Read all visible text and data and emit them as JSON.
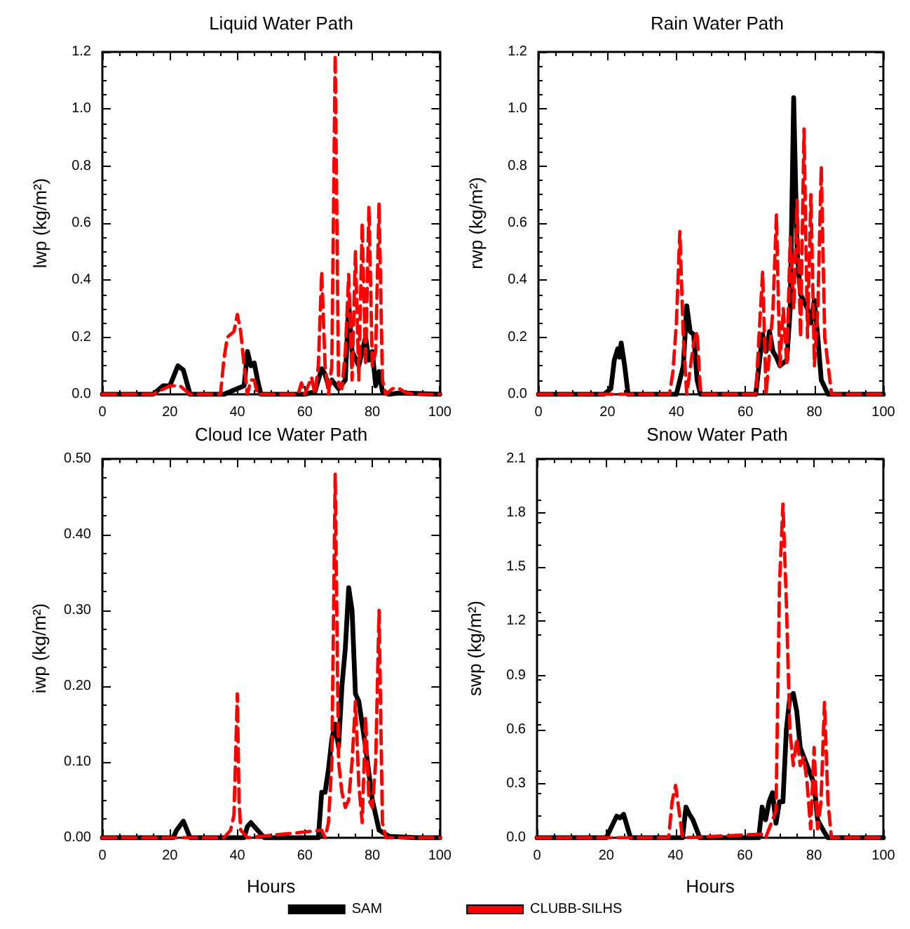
{
  "chart_data": [
    {
      "type": "line",
      "title": "Liquid Water Path",
      "ylabel": "lwp (kg/m²)",
      "xlim": [
        0,
        100
      ],
      "xticks": [
        0,
        20,
        40,
        60,
        80,
        100
      ],
      "ylim": [
        0,
        1.2
      ],
      "yticks": [
        {
          "value": 0,
          "label": "0.0"
        },
        {
          "value": 0.2,
          "label": "0.2"
        },
        {
          "value": 0.4,
          "label": "0.4"
        },
        {
          "value": 0.6,
          "label": "0.6"
        },
        {
          "value": 0.8,
          "label": "0.8"
        },
        {
          "value": 1.0,
          "label": "1.0"
        },
        {
          "value": 1.2,
          "label": "1.2"
        }
      ],
      "grid": false,
      "legend": false,
      "tick_labels": "xy",
      "series": [
        {
          "color": "#000000",
          "line_style": "solid",
          "x": [
            0,
            15,
            18,
            20,
            22.4,
            24,
            26,
            36,
            40,
            42,
            43,
            44,
            45,
            46,
            47,
            60,
            63,
            65,
            66,
            67,
            68,
            70,
            72,
            73,
            74,
            76,
            78,
            79,
            80,
            81,
            82,
            83,
            85,
            88,
            100
          ],
          "values": [
            0,
            0,
            0.03,
            0.03,
            0.1,
            0.085,
            0,
            0,
            0.02,
            0.03,
            0.15,
            0.1,
            0.11,
            0.05,
            0,
            0,
            0.01,
            0.09,
            0.07,
            0.03,
            0.05,
            0.02,
            0.05,
            0.32,
            0.15,
            0.1,
            0.2,
            0.12,
            0.15,
            0.03,
            0.08,
            0.01,
            0,
            0.005,
            0
          ]
        },
        {
          "color": "#ff0000",
          "line_style": "dashed",
          "x": [
            0,
            15,
            20,
            23,
            26,
            35,
            36,
            37,
            38,
            39,
            40,
            41,
            42,
            43,
            44,
            45,
            46,
            58,
            59,
            60,
            62,
            63,
            64,
            65,
            66,
            67,
            68,
            69,
            70,
            71,
            72,
            73,
            74,
            75,
            76,
            77,
            78,
            79,
            80,
            81,
            82,
            83,
            84,
            86,
            88,
            90,
            93,
            100
          ],
          "values": [
            0,
            0,
            0.03,
            0.03,
            0,
            0,
            0.12,
            0.2,
            0.21,
            0.22,
            0.28,
            0.22,
            0.1,
            0,
            0.05,
            0.05,
            0,
            0,
            0.04,
            0,
            0.06,
            0,
            0.1,
            0.43,
            0.1,
            0,
            0.1,
            1.19,
            0.03,
            0.02,
            0.15,
            0.42,
            0.05,
            0.5,
            0.05,
            0.6,
            0.1,
            0.66,
            0.1,
            0.15,
            0.67,
            0.05,
            0,
            0.02,
            0.02,
            0.005,
            0,
            0
          ]
        }
      ]
    },
    {
      "type": "line",
      "title": "Rain Water Path",
      "ylabel": "rwp (kg/m²)",
      "xlim": [
        0,
        100
      ],
      "xticks": [
        0,
        20,
        40,
        60,
        80,
        100
      ],
      "ylim": [
        0,
        1.2
      ],
      "yticks": [
        {
          "value": 0,
          "label": "0.0"
        },
        {
          "value": 0.2,
          "label": "0.2"
        },
        {
          "value": 0.4,
          "label": "0.4"
        },
        {
          "value": 0.6,
          "label": "0.6"
        },
        {
          "value": 0.8,
          "label": "0.8"
        },
        {
          "value": 1.0,
          "label": "1.0"
        },
        {
          "value": 1.2,
          "label": "1.2"
        }
      ],
      "grid": false,
      "legend": false,
      "series": [
        {
          "color": "#000000",
          "line_style": "solid",
          "x": [
            0,
            19,
            21,
            22,
            23,
            23.5,
            24,
            25,
            26,
            40,
            42,
            43,
            44,
            45,
            46,
            47,
            63,
            65,
            66,
            67,
            68,
            69,
            70,
            72,
            73,
            74,
            75,
            76,
            78,
            79,
            80,
            81,
            82,
            84,
            100
          ],
          "values": [
            0,
            0,
            0.02,
            0.12,
            0.16,
            0.13,
            0.18,
            0.1,
            0,
            0,
            0.1,
            0.31,
            0.22,
            0.21,
            0.05,
            0,
            0,
            0.21,
            0.15,
            0.22,
            0.15,
            0.13,
            0.1,
            0.12,
            0.3,
            1.04,
            0.5,
            0.35,
            0.3,
            0.25,
            0.33,
            0.2,
            0.05,
            0,
            0
          ]
        },
        {
          "color": "#ff0000",
          "line_style": "dashed",
          "x": [
            0,
            38,
            39,
            40,
            41,
            42,
            43,
            45,
            46,
            47,
            63,
            65,
            66,
            68,
            69,
            70,
            71,
            72,
            73,
            74,
            75,
            76,
            77,
            78,
            79,
            80,
            81,
            82,
            83,
            84,
            85,
            100
          ],
          "values": [
            0,
            0,
            0.08,
            0.25,
            0.57,
            0.2,
            0,
            0.18,
            0.22,
            0,
            0,
            0.43,
            0,
            0.3,
            0.63,
            0.1,
            0.3,
            0.1,
            0.55,
            0.3,
            0.68,
            0.2,
            0.93,
            0.2,
            0.7,
            0.1,
            0.3,
            0.8,
            0.2,
            0.1,
            0,
            0
          ]
        }
      ]
    },
    {
      "type": "line",
      "title": "Cloud Ice Water Path",
      "xlabel": "Hours",
      "ylabel": "iwp (kg/m²)",
      "xlim": [
        0,
        100
      ],
      "xticks": [
        0,
        20,
        40,
        60,
        80,
        100
      ],
      "ylim": [
        0,
        0.5
      ],
      "yticks": [
        {
          "value": 0,
          "label": "0.00"
        },
        {
          "value": 0.1,
          "label": "0.10"
        },
        {
          "value": 0.2,
          "label": "0.20"
        },
        {
          "value": 0.3,
          "label": "0.30"
        },
        {
          "value": 0.4,
          "label": "0.40"
        },
        {
          "value": 0.5,
          "label": "0.50"
        }
      ],
      "grid": false,
      "legend": false,
      "series": [
        {
          "color": "#000000",
          "line_style": "solid",
          "x": [
            0,
            21,
            22,
            24,
            26,
            42,
            43,
            44,
            46,
            48,
            64,
            65,
            66,
            67,
            68,
            69,
            70,
            71,
            72,
            73,
            74,
            75,
            76,
            78,
            80,
            82,
            85,
            93,
            100
          ],
          "values": [
            0,
            0,
            0.01,
            0.022,
            0,
            0,
            0.015,
            0.02,
            0.01,
            0,
            0,
            0.06,
            0.06,
            0.09,
            0.13,
            0.15,
            0.12,
            0.2,
            0.25,
            0.33,
            0.3,
            0.19,
            0.18,
            0.12,
            0.05,
            0.01,
            0.002,
            0,
            0
          ]
        },
        {
          "color": "#ff0000",
          "line_style": "dashed",
          "x": [
            0,
            36,
            38,
            39,
            40,
            40.5,
            41,
            43,
            65,
            66,
            67,
            68,
            69,
            70,
            71,
            72,
            73,
            74,
            75,
            76,
            77,
            78,
            79,
            80,
            81,
            82,
            83,
            84,
            93,
            100
          ],
          "values": [
            0,
            0,
            0.01,
            0.03,
            0.19,
            0.05,
            0.01,
            0,
            0.01,
            0,
            0.02,
            0.1,
            0.48,
            0.1,
            0.06,
            0.04,
            0.05,
            0.1,
            0.18,
            0.07,
            0.02,
            0.16,
            0.05,
            0.04,
            0.1,
            0.3,
            0.02,
            0,
            0,
            0
          ]
        }
      ]
    },
    {
      "type": "line",
      "title": "Snow Water Path",
      "xlabel": "Hours",
      "ylabel": "swp (kg/m²)",
      "xlim": [
        0,
        100
      ],
      "xticks": [
        0,
        20,
        40,
        60,
        80,
        100
      ],
      "ylim": [
        0,
        2.1
      ],
      "yticks": [
        {
          "value": 0,
          "label": "0.0"
        },
        {
          "value": 0.3,
          "label": "0.3"
        },
        {
          "value": 0.6,
          "label": "0.6"
        },
        {
          "value": 0.9,
          "label": "0.9"
        },
        {
          "value": 1.2,
          "label": "1.2"
        },
        {
          "value": 1.5,
          "label": "1.5"
        },
        {
          "value": 1.8,
          "label": "1.8"
        },
        {
          "value": 2.1,
          "label": "2.1"
        }
      ],
      "grid": false,
      "legend": "bottom",
      "series": [
        {
          "name": "SAM",
          "color": "#000000",
          "line_style": "solid",
          "x": [
            0,
            20,
            23,
            24,
            25,
            27,
            42,
            43,
            44,
            45,
            47,
            64,
            65,
            66,
            67,
            68,
            69,
            70,
            71,
            72,
            73,
            74,
            75,
            76,
            78,
            80,
            81,
            83,
            84,
            100
          ],
          "values": [
            0,
            0,
            0.12,
            0.11,
            0.13,
            0,
            0,
            0.17,
            0.13,
            0.1,
            0,
            0,
            0.17,
            0.1,
            0.2,
            0.25,
            0.08,
            0.2,
            0.2,
            0.6,
            0.78,
            0.8,
            0.7,
            0.5,
            0.4,
            0.3,
            0.1,
            0.03,
            0,
            0
          ]
        },
        {
          "name": "CLUBB-SILHS",
          "color": "#ff0000",
          "line_style": "dashed",
          "x": [
            0,
            38,
            39,
            40,
            41,
            42,
            65,
            66,
            69,
            70,
            71,
            72,
            73,
            74,
            75,
            76,
            77,
            78,
            79,
            80,
            81,
            82,
            83,
            84,
            85,
            100
          ],
          "values": [
            0,
            0,
            0.2,
            0.29,
            0.15,
            0,
            0.02,
            0,
            0.15,
            1.4,
            1.85,
            1.3,
            0.6,
            0.4,
            0.55,
            0.4,
            0.45,
            0.3,
            0.05,
            0.5,
            0.05,
            0.2,
            0.75,
            0.2,
            0,
            0
          ]
        }
      ]
    }
  ]
}
